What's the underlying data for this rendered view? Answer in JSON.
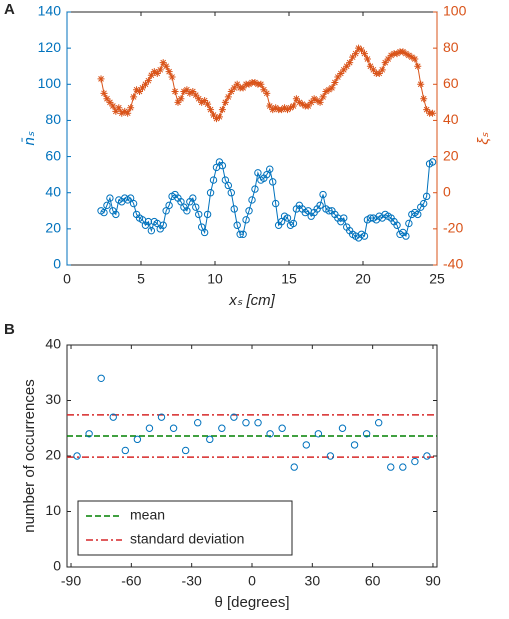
{
  "chart_data": [
    {
      "type": "line",
      "panel_label": "A",
      "xlabel": "xₛ [cm]",
      "ylabel": "n̄ₛ",
      "y2label": "ξₛ",
      "xlim": [
        0,
        25
      ],
      "xticks": [
        0,
        5,
        10,
        15,
        20,
        25
      ],
      "ylim": [
        0,
        140
      ],
      "yticks": [
        0,
        20,
        40,
        60,
        80,
        100,
        120,
        140
      ],
      "y2lim": [
        -40,
        100
      ],
      "y2ticks": [
        -40,
        -20,
        0,
        20,
        40,
        60,
        80,
        100
      ],
      "ycolor": "#0072bd",
      "y2color": "#d95319",
      "grid": false,
      "x": [
        2.3,
        2.5,
        2.7,
        2.9,
        3.1,
        3.3,
        3.5,
        3.7,
        3.9,
        4.1,
        4.3,
        4.5,
        4.7,
        4.9,
        5.1,
        5.3,
        5.5,
        5.7,
        5.9,
        6.1,
        6.3,
        6.5,
        6.7,
        6.9,
        7.1,
        7.3,
        7.5,
        7.7,
        7.9,
        8.1,
        8.3,
        8.5,
        8.7,
        8.9,
        9.1,
        9.3,
        9.5,
        9.7,
        9.9,
        10.1,
        10.3,
        10.5,
        10.7,
        10.9,
        11.1,
        11.3,
        11.5,
        11.7,
        11.9,
        12.1,
        12.3,
        12.5,
        12.7,
        12.9,
        13.1,
        13.3,
        13.5,
        13.7,
        13.9,
        14.1,
        14.3,
        14.5,
        14.7,
        14.9,
        15.1,
        15.3,
        15.5,
        15.7,
        15.9,
        16.1,
        16.3,
        16.5,
        16.7,
        16.9,
        17.1,
        17.3,
        17.5,
        17.7,
        17.9,
        18.1,
        18.3,
        18.5,
        18.7,
        18.9,
        19.1,
        19.3,
        19.5,
        19.7,
        19.9,
        20.1,
        20.3,
        20.5,
        20.7,
        20.9,
        21.1,
        21.3,
        21.5,
        21.7,
        21.9,
        22.1,
        22.3,
        22.5,
        22.7,
        22.9,
        23.1,
        23.3,
        23.5,
        23.7,
        23.9,
        24.1,
        24.3,
        24.5,
        24.7
      ],
      "series": [
        {
          "color": "#0072bd",
          "marker": "o",
          "axis": "y",
          "values": [
            30,
            29,
            33,
            37,
            30,
            28,
            36,
            35,
            37,
            36,
            37,
            34,
            28,
            26,
            25,
            22,
            24,
            19,
            24,
            23,
            20,
            22,
            30,
            33,
            38,
            39,
            37,
            35,
            32,
            30,
            35,
            37,
            32,
            28,
            21,
            18,
            28,
            40,
            47,
            54,
            57,
            55,
            47,
            44,
            40,
            31,
            22,
            17,
            17,
            25,
            30,
            36,
            42,
            51,
            47,
            48,
            50,
            53,
            46,
            34,
            22,
            24,
            27,
            26,
            22,
            23,
            31,
            33,
            31,
            29,
            30,
            27,
            29,
            31,
            33,
            39,
            31,
            30,
            30,
            28,
            26,
            24,
            26,
            21,
            19,
            17,
            16,
            15,
            17,
            16,
            25,
            26,
            26,
            25,
            27,
            26,
            28,
            27,
            26,
            24,
            22,
            17,
            18,
            16,
            23,
            28,
            29,
            28,
            32,
            34,
            38,
            56,
            57
          ]
        },
        {
          "color": "#d95319",
          "marker": "*",
          "axis": "y2",
          "values": [
            63,
            55,
            52,
            50,
            48,
            45,
            47,
            44,
            45,
            44,
            47,
            53,
            57,
            56,
            58,
            60,
            62,
            65,
            67,
            66,
            68,
            72,
            70,
            67,
            64,
            56,
            50,
            52,
            56,
            57,
            55,
            56,
            54,
            52,
            50,
            51,
            49,
            46,
            43,
            41,
            42,
            46,
            50,
            53,
            56,
            58,
            60,
            58,
            58,
            60,
            60,
            61,
            61,
            60,
            60,
            57,
            55,
            48,
            46,
            47,
            46,
            46,
            47,
            46,
            47,
            48,
            52,
            50,
            49,
            48,
            48,
            50,
            52,
            51,
            50,
            53,
            56,
            57,
            58,
            61,
            64,
            66,
            68,
            70,
            72,
            75,
            77,
            80,
            79,
            77,
            74,
            70,
            68,
            66,
            66,
            68,
            72,
            74,
            76,
            77,
            77,
            78,
            78,
            77,
            76,
            75,
            74,
            70,
            60,
            52,
            46,
            44,
            44
          ]
        }
      ]
    },
    {
      "type": "scatter",
      "panel_label": "B",
      "xlabel": "θ [degrees]",
      "ylabel": "number of occurrences",
      "xlim": [
        -92,
        92
      ],
      "xticks": [
        -90,
        -60,
        -30,
        0,
        30,
        60,
        90
      ],
      "ylim": [
        0,
        40
      ],
      "yticks": [
        0,
        10,
        20,
        30,
        40
      ],
      "grid": false,
      "x": [
        -87,
        -81,
        -75,
        -69,
        -63,
        -57,
        -51,
        -45,
        -39,
        -33,
        -27,
        -21,
        -15,
        -9,
        -3,
        3,
        9,
        15,
        21,
        27,
        33,
        39,
        45,
        51,
        57,
        63,
        69,
        75,
        81,
        87
      ],
      "series": [
        {
          "color": "#0072bd",
          "marker": "o",
          "values": [
            20,
            24,
            34,
            27,
            21,
            23,
            25,
            27,
            25,
            21,
            26,
            23,
            25,
            27,
            26,
            26,
            24,
            25,
            18,
            22,
            24,
            20,
            25,
            22,
            24,
            26,
            18,
            18,
            19,
            20
          ]
        }
      ],
      "hlines": [
        {
          "name": "mean",
          "color": "#008000",
          "style": "dashed",
          "values": [
            23.6
          ]
        },
        {
          "name": "standard deviation",
          "color": "#d62728",
          "style": "dashdot",
          "values": [
            19.8,
            27.4
          ]
        }
      ],
      "legend": "lower left"
    }
  ]
}
